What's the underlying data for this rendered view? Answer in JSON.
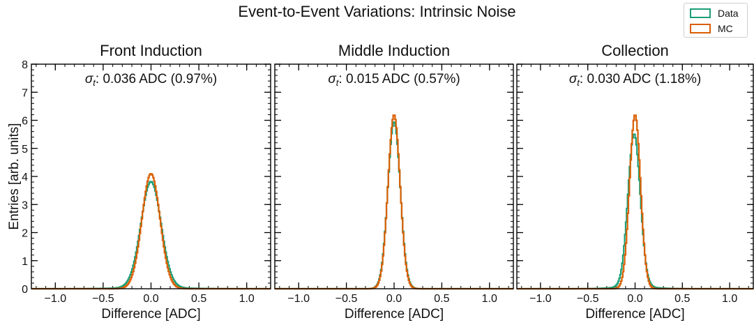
{
  "figure": {
    "title": "Event-to-Event Variations: Intrinsic Noise",
    "ylabel": "Entries [arb. units]"
  },
  "legend": {
    "entries": [
      {
        "label": "Data",
        "color": "#1b9e77"
      },
      {
        "label": "MC",
        "color": "#d95f02"
      }
    ]
  },
  "chart_data": [
    {
      "type": "line",
      "title": "Front Induction",
      "annotation": "0.036 ADC (0.97%)",
      "annotation_symbol": "σ",
      "annotation_subscript": "t",
      "xlabel": "Difference [ADC]",
      "ylabel": "Entries [arb. units]",
      "xlim": [
        -1.25,
        1.25
      ],
      "ylim": [
        0,
        8
      ],
      "xticks": [
        "−1.0",
        "−0.5",
        "0.0",
        "0.5",
        "1.0"
      ],
      "yticks": [
        "0",
        "1",
        "2",
        "3",
        "4",
        "5",
        "6",
        "7",
        "8"
      ],
      "series": [
        {
          "name": "Data",
          "color": "#1b9e77",
          "peak": 3.78,
          "center": 0.0,
          "sigma": 0.105,
          "tail": 0.01
        },
        {
          "name": "MC",
          "color": "#d95f02",
          "peak": 4.1,
          "center": 0.0,
          "sigma": 0.095,
          "tail": 0.0
        }
      ]
    },
    {
      "type": "line",
      "title": "Middle Induction",
      "annotation": "0.015 ADC (0.57%)",
      "annotation_symbol": "σ",
      "annotation_subscript": "t",
      "xlabel": "Difference [ADC]",
      "ylabel": "",
      "xlim": [
        -1.25,
        1.25
      ],
      "ylim": [
        0,
        8
      ],
      "xticks": [
        "−1.0",
        "−0.5",
        "0.0",
        "0.5",
        "1.0"
      ],
      "yticks": [],
      "series": [
        {
          "name": "Data",
          "color": "#1b9e77",
          "peak": 5.95,
          "center": 0.0,
          "sigma": 0.065,
          "tail": 0.0
        },
        {
          "name": "MC",
          "color": "#d95f02",
          "peak": 6.2,
          "center": 0.0,
          "sigma": 0.063,
          "tail": 0.0
        }
      ]
    },
    {
      "type": "line",
      "title": "Collection",
      "annotation": "0.030 ADC (1.18%)",
      "annotation_symbol": "σ",
      "annotation_subscript": "t",
      "xlabel": "Difference [ADC]",
      "ylabel": "",
      "xlim": [
        -1.25,
        1.25
      ],
      "ylim": [
        0,
        8
      ],
      "xticks": [
        "−1.0",
        "−0.5",
        "0.0",
        "0.5",
        "1.0"
      ],
      "yticks": [],
      "series": [
        {
          "name": "Data",
          "color": "#1b9e77",
          "peak": 5.45,
          "center": -0.01,
          "sigma": 0.065,
          "tail": 0.012
        },
        {
          "name": "MC",
          "color": "#d95f02",
          "peak": 6.2,
          "center": 0.0,
          "sigma": 0.058,
          "tail": 0.0
        }
      ]
    }
  ]
}
